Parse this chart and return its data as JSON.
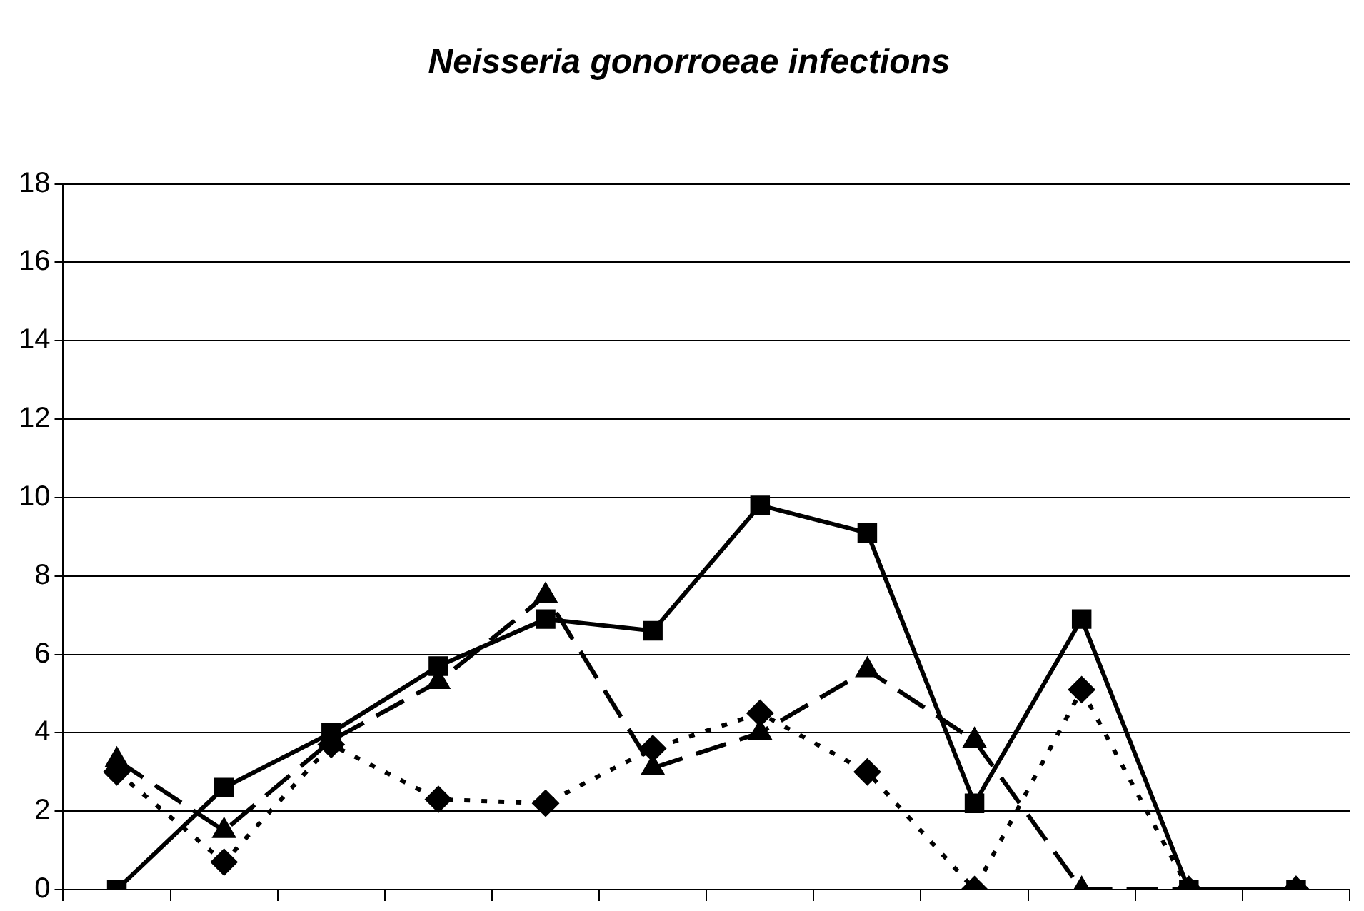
{
  "chart_data": {
    "type": "line",
    "title": "Neisseria gonorroeae infections",
    "categories": [
      null,
      null,
      null,
      null,
      null,
      null,
      null,
      null,
      null,
      null,
      null,
      null
    ],
    "series": [
      {
        "color": "#000000",
        "marker": "square",
        "line_style": "solid",
        "values": [
          0,
          2.6,
          4.0,
          5.7,
          6.9,
          6.6,
          9.8,
          9.1,
          2.2,
          6.9,
          0,
          0
        ]
      },
      {
        "color": "#000000",
        "marker": "triangle",
        "line_style": "dashed",
        "values": [
          3.3,
          1.5,
          3.8,
          5.3,
          7.5,
          3.1,
          4.0,
          5.6,
          3.8,
          0,
          0,
          0
        ]
      },
      {
        "color": "#000000",
        "marker": "diamond",
        "line_style": "dotted",
        "values": [
          3.0,
          0.7,
          3.7,
          2.3,
          2.2,
          3.6,
          4.5,
          3.0,
          0,
          5.1,
          0,
          0
        ]
      }
    ],
    "ylim": [
      0,
      18
    ],
    "yticks": [
      0,
      2,
      4,
      6,
      8,
      10,
      12,
      14,
      16,
      18
    ],
    "grid": "y",
    "legend": false,
    "tick_labels": "y"
  }
}
